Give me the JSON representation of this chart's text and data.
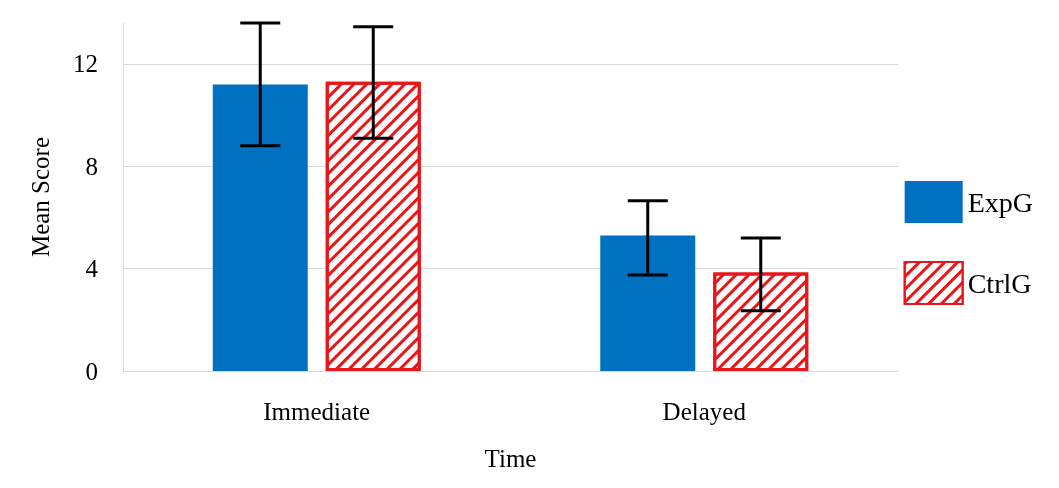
{
  "chart_data": {
    "type": "bar",
    "xlabel": "Time",
    "ylabel": "Mean Score",
    "categories": [
      "Immediate",
      "Delayed"
    ],
    "series": [
      {
        "name": "ExpG",
        "color": "#0070c0",
        "values": [
          11.2,
          5.3
        ],
        "errors": [
          [
            8.8,
            13.6
          ],
          [
            3.75,
            6.65
          ]
        ]
      },
      {
        "name": "CtrlG",
        "color": "#e8161b",
        "values": [
          11.3,
          3.85
        ],
        "errors": [
          [
            9.1,
            13.45
          ],
          [
            2.35,
            5.2
          ]
        ]
      }
    ],
    "ylim": [
      0,
      13.6
    ],
    "yticks": [
      0,
      4,
      8,
      12
    ],
    "grid": "y",
    "legend": "right"
  }
}
